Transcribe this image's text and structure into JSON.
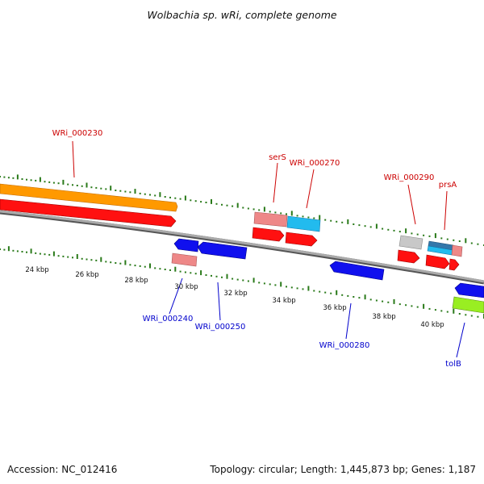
{
  "title": "Wolbachia sp. wRi, complete genome",
  "footer": {
    "accession": "Accession: NC_012416",
    "summary": "Topology: circular; Length: 1,445,873 bp; Genes: 1,187"
  },
  "colors": {
    "forward_label": "#cc0000",
    "reverse_label": "#0000cc",
    "backbone": "#7a7a7a",
    "tick": "#2a7a1a",
    "orange": "#ff9900",
    "red": "#ff0000",
    "blue": "#1010ee",
    "pink": "#ee7777",
    "cyan": "#11aaee",
    "gray": "#bbbbbb",
    "lime": "#99ee22",
    "steel": "#3377aa"
  },
  "ticks": [
    {
      "label": "24 kbp"
    },
    {
      "label": "26 kbp"
    },
    {
      "label": "28 kbp"
    },
    {
      "label": "30 kbp"
    },
    {
      "label": "32 kbp"
    },
    {
      "label": "34 kbp"
    },
    {
      "label": "36 kbp"
    },
    {
      "label": "38 kbp"
    },
    {
      "label": "40 kbp"
    }
  ],
  "gene_labels": {
    "wri230": "WRi_000230",
    "sers": "serS",
    "wri270": "WRi_000270",
    "wri290": "WRi_000290",
    "prsa": "prsA",
    "wri240": "WRi_000240",
    "wri250": "WRi_000250",
    "wri280": "WRi_000280",
    "tolb": "tolB"
  }
}
